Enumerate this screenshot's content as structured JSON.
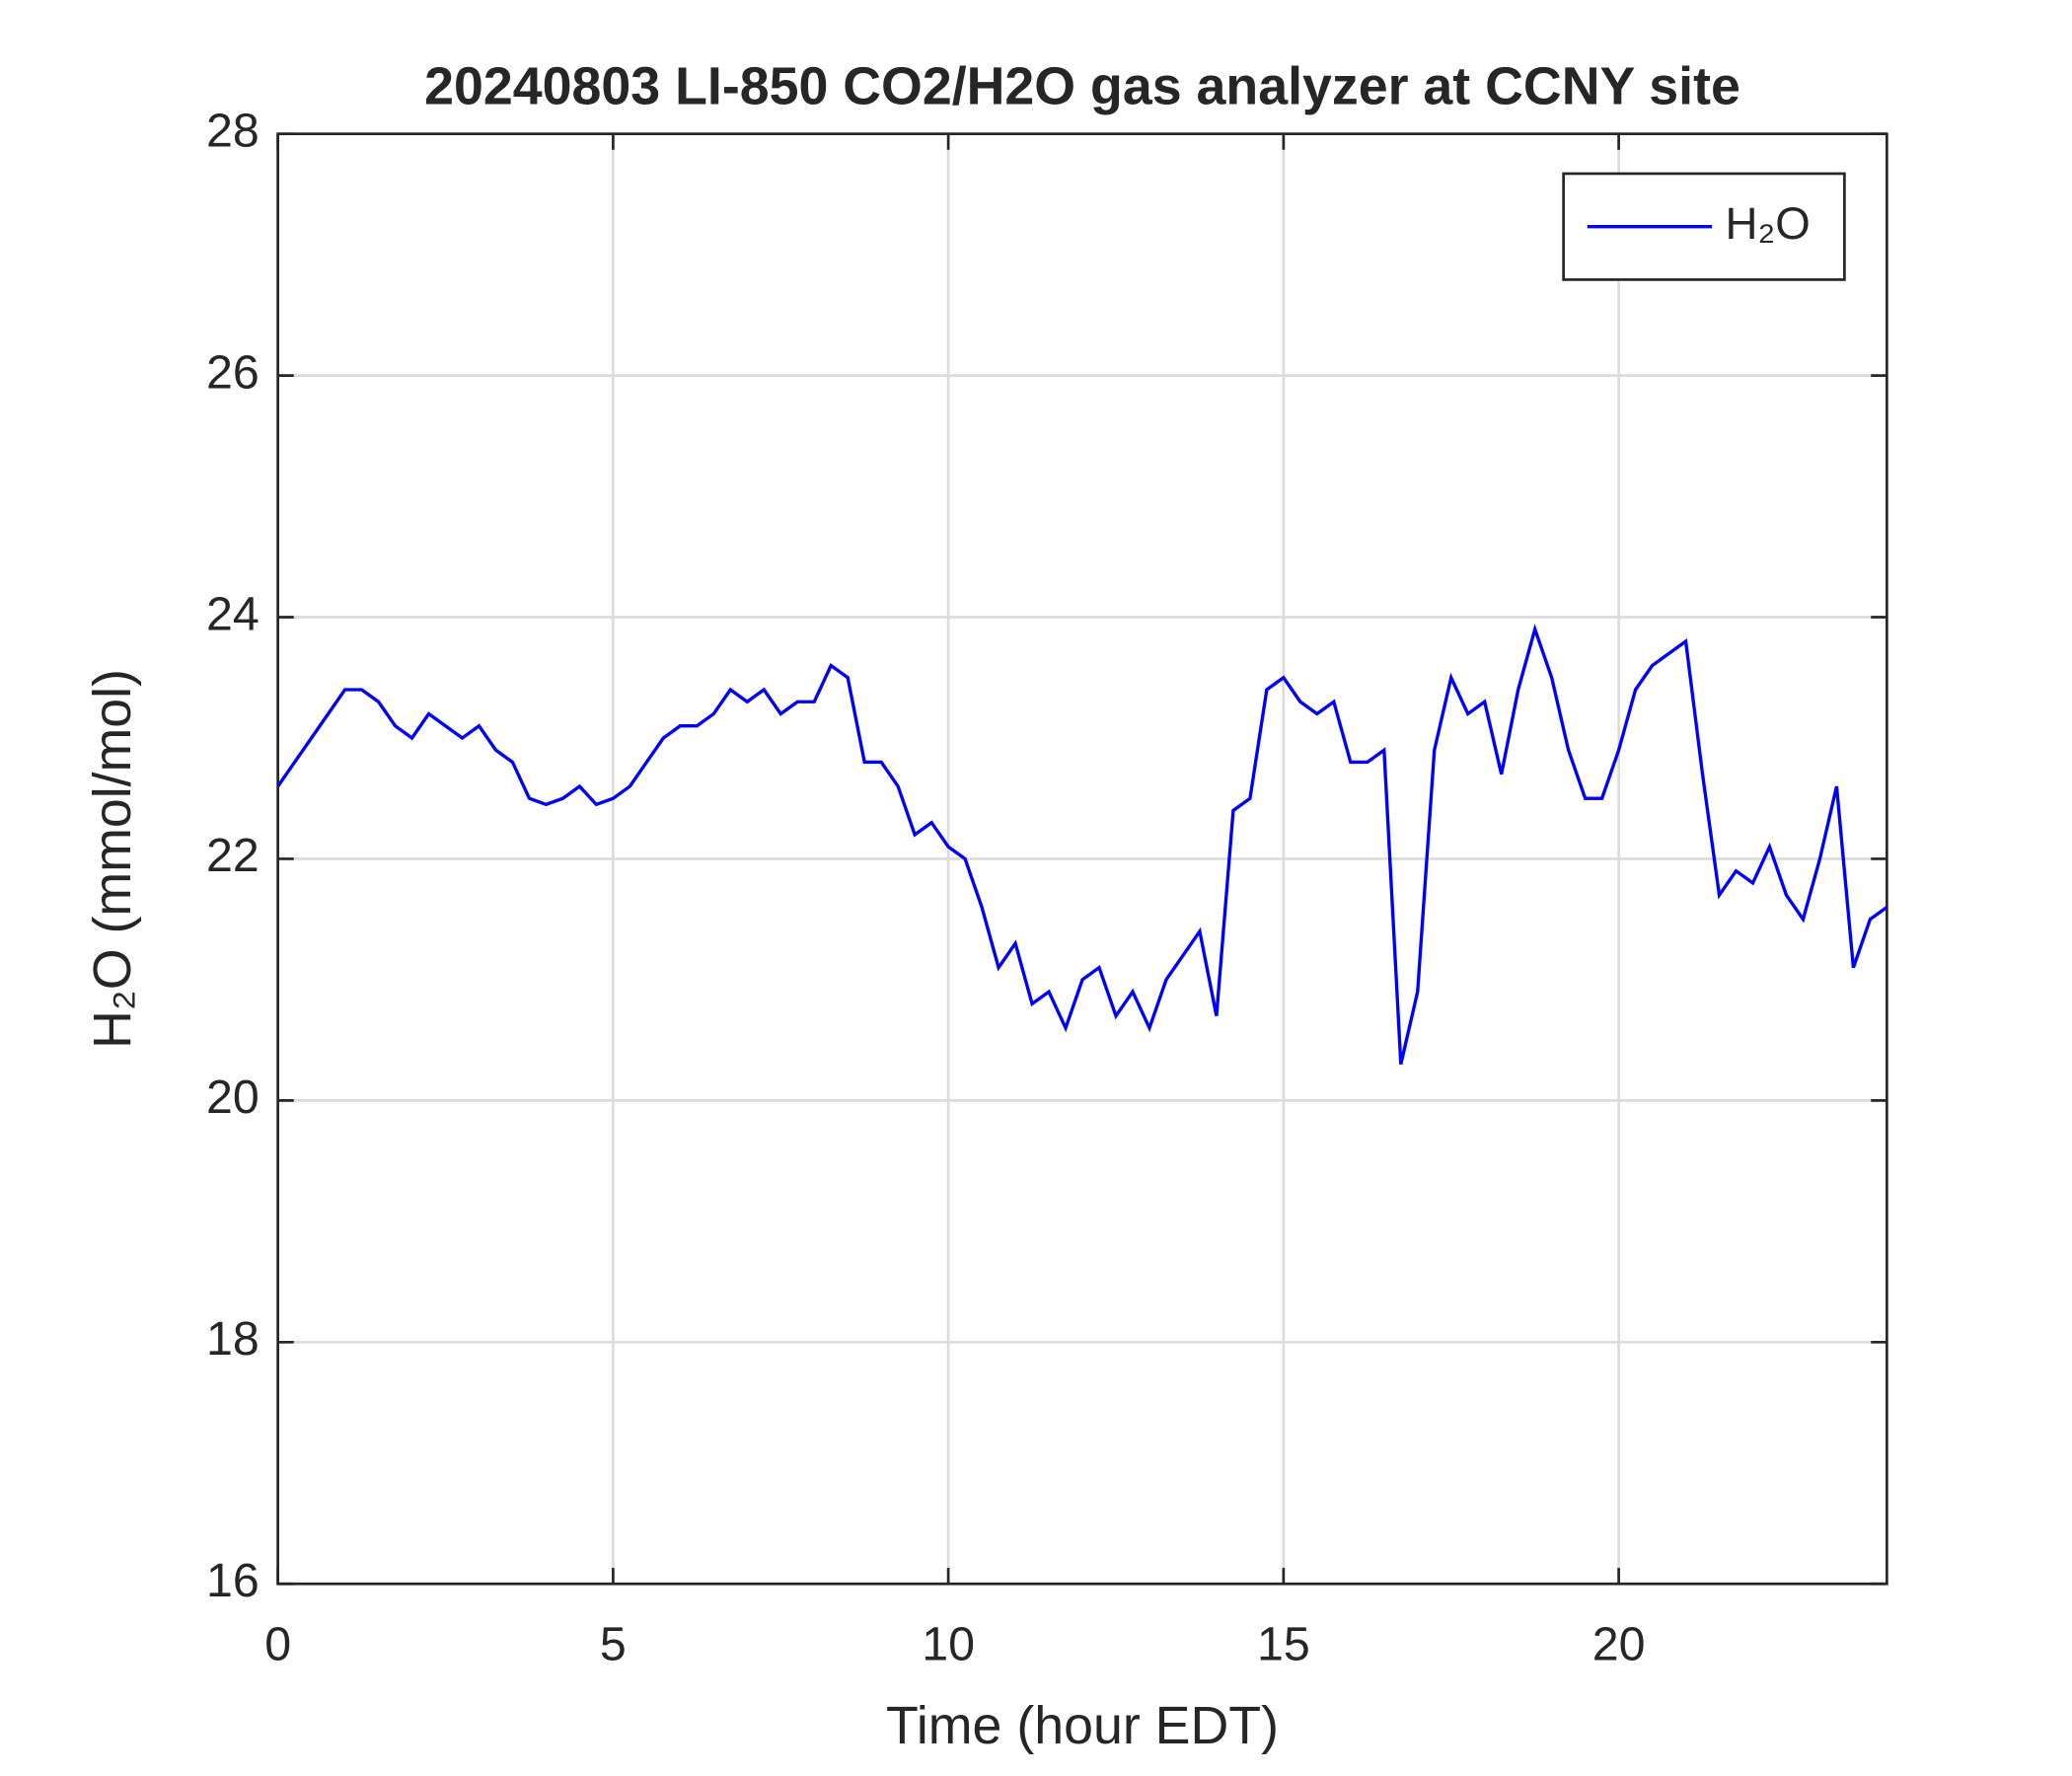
{
  "chart_data": {
    "type": "line",
    "title": "20240803 LI-850 CO2/H2O gas analyzer at CCNY site",
    "xlabel": "Time (hour EDT)",
    "ylabel": "H₂O (mmol/mol)",
    "xlim": [
      0,
      24
    ],
    "xticks": [
      0,
      5,
      10,
      15,
      20
    ],
    "ylim": [
      16,
      28
    ],
    "yticks": [
      16,
      18,
      20,
      22,
      24,
      26,
      28
    ],
    "grid": true,
    "legend": "upper right",
    "x": [
      0,
      0.25,
      0.5,
      0.75,
      1,
      1.25,
      1.5,
      1.75,
      2,
      2.25,
      2.5,
      2.75,
      3,
      3.25,
      3.5,
      3.75,
      4,
      4.25,
      4.5,
      4.75,
      5,
      5.25,
      5.5,
      5.75,
      6,
      6.25,
      6.5,
      6.75,
      7,
      7.25,
      7.5,
      7.75,
      8,
      8.25,
      8.5,
      8.75,
      9,
      9.25,
      9.5,
      9.75,
      10,
      10.25,
      10.5,
      10.75,
      11,
      11.25,
      11.5,
      11.75,
      12,
      12.25,
      12.5,
      12.75,
      13,
      13.25,
      13.5,
      13.75,
      14,
      14.25,
      14.5,
      14.75,
      15,
      15.25,
      15.5,
      15.75,
      16,
      16.25,
      16.5,
      16.75,
      17,
      17.25,
      17.5,
      17.75,
      18,
      18.25,
      18.5,
      18.75,
      19,
      19.25,
      19.5,
      19.75,
      20,
      20.25,
      20.5,
      20.75,
      21,
      21.25,
      21.5,
      21.75,
      22,
      22.25,
      22.5,
      22.75,
      23,
      23.25,
      23.5,
      23.75,
      24
    ],
    "series": [
      {
        "name": "H₂O",
        "color": "#0000ff",
        "values": [
          22.6,
          22.8,
          23.0,
          23.2,
          23.4,
          23.4,
          23.3,
          23.1,
          23.0,
          23.2,
          23.1,
          23.0,
          23.1,
          22.9,
          22.8,
          22.5,
          22.45,
          22.5,
          22.6,
          22.45,
          22.5,
          22.6,
          22.8,
          23.0,
          23.1,
          23.1,
          23.2,
          23.4,
          23.3,
          23.4,
          23.2,
          23.3,
          23.3,
          23.6,
          23.5,
          22.8,
          22.8,
          22.6,
          22.2,
          22.3,
          22.1,
          22.0,
          21.6,
          21.1,
          21.3,
          20.8,
          20.9,
          20.6,
          21.0,
          21.1,
          20.7,
          20.9,
          20.6,
          21.0,
          21.2,
          21.4,
          20.7,
          22.4,
          22.5,
          23.4,
          23.5,
          23.3,
          23.2,
          23.3,
          22.8,
          22.8,
          22.9,
          20.3,
          20.9,
          22.9,
          23.5,
          23.2,
          23.3,
          22.7,
          23.4,
          23.9,
          23.5,
          22.9,
          22.5,
          22.5,
          22.9,
          23.4,
          23.6,
          23.7,
          23.8,
          22.7,
          21.7,
          21.9,
          21.8,
          22.1,
          21.7,
          21.5,
          22.0,
          22.6,
          21.1,
          21.5,
          21.6
        ]
      }
    ]
  }
}
